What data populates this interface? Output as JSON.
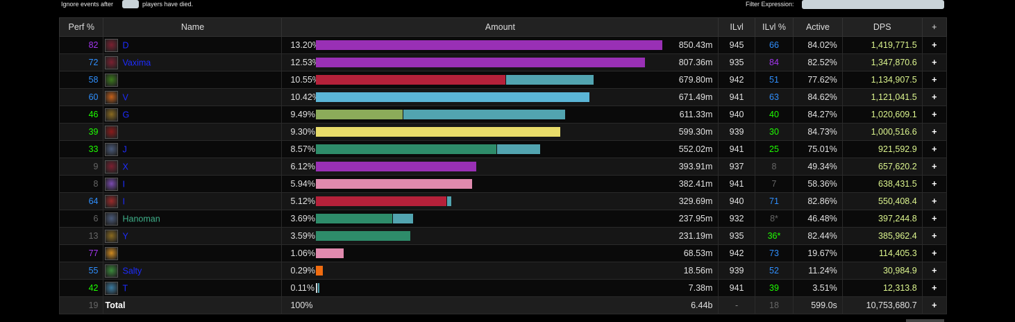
{
  "topbar": {
    "ignore_before": "Ignore events after",
    "ignore_after": "players have died.",
    "filter_label": "Filter Expression:"
  },
  "headers": [
    "Perf %",
    "Name",
    "Amount",
    "ILvl",
    "ILvl %",
    "Active",
    "DPS",
    "+"
  ],
  "colors": {
    "perf_purple": "#a335ee",
    "perf_blue": "#2f8ffe",
    "perf_green": "#1eff00",
    "perf_gray": "#666666",
    "dps_text": "#dcf58e",
    "name_blue": "#1d2cff"
  },
  "rows": [
    {
      "perf": "82",
      "perf_color": "#a335ee",
      "name": "D",
      "name_color": "#1d2cff",
      "icon": "death-knight-icon",
      "icon_color": "#7a2030",
      "pct": "13.20%",
      "bar": [
        {
          "color": "#9930b5",
          "frac": 1.0
        }
      ],
      "amount": "850.43m",
      "ilvl": "945",
      "ilvlpct": "66",
      "ilvlpct_color": "#2f8ffe",
      "active": "84.02%",
      "dps": "1,419,771.5"
    },
    {
      "perf": "72",
      "perf_color": "#2f8ffe",
      "name": "Vaxima",
      "name_color": "#1d2cff",
      "icon": "death-knight-icon",
      "icon_color": "#7a2030",
      "pct": "12.53%",
      "bar": [
        {
          "color": "#9930b5",
          "frac": 0.95
        }
      ],
      "amount": "807.36m",
      "ilvl": "935",
      "ilvlpct": "84",
      "ilvlpct_color": "#a335ee",
      "active": "82.52%",
      "dps": "1,347,870.6"
    },
    {
      "perf": "58",
      "perf_color": "#2f8ffe",
      "name": "",
      "name_color": "#1d2cff",
      "icon": "warlock-icon",
      "icon_color": "#3c7a1c",
      "pct": "10.55%",
      "bar": [
        {
          "color": "#b5213a",
          "frac": 0.547
        },
        {
          "color": "#52a4b0",
          "frac": 0.252
        }
      ],
      "amount": "679.80m",
      "ilvl": "942",
      "ilvlpct": "51",
      "ilvlpct_color": "#2f8ffe",
      "active": "77.62%",
      "dps": "1,134,907.5"
    },
    {
      "perf": "60",
      "perf_color": "#2f8ffe",
      "name": "V",
      "name_color": "#1d2cff",
      "icon": "mage-icon",
      "icon_color": "#c4601a",
      "pct": "10.42%",
      "bar": [
        {
          "color": "#5bb5d6",
          "frac": 0.79
        }
      ],
      "amount": "671.49m",
      "ilvl": "941",
      "ilvlpct": "63",
      "ilvlpct_color": "#2f8ffe",
      "active": "84.62%",
      "dps": "1,121,041.5"
    },
    {
      "perf": "46",
      "perf_color": "#1eff00",
      "name": "G",
      "name_color": "#1d2cff",
      "icon": "hunter-icon",
      "icon_color": "#8a6a20",
      "pct": "9.49%",
      "bar": [
        {
          "color": "#8cab5a",
          "frac": 0.25
        },
        {
          "color": "#52a4b0",
          "frac": 0.466
        }
      ],
      "amount": "611.33m",
      "ilvl": "940",
      "ilvlpct": "40",
      "ilvlpct_color": "#1eff00",
      "active": "84.27%",
      "dps": "1,020,609.1"
    },
    {
      "perf": "39",
      "perf_color": "#1eff00",
      "name": "",
      "name_color": "#1d2cff",
      "icon": "rogue-icon",
      "icon_color": "#8a1a1a",
      "pct": "9.30%",
      "bar": [
        {
          "color": "#e8dc6a",
          "frac": 0.706
        }
      ],
      "amount": "599.30m",
      "ilvl": "939",
      "ilvlpct": "30",
      "ilvlpct_color": "#1eff00",
      "active": "84.73%",
      "dps": "1,000,516.6"
    },
    {
      "perf": "33",
      "perf_color": "#1eff00",
      "name": "J",
      "name_color": "#1d2cff",
      "icon": "shaman-icon",
      "icon_color": "#4a5a7a",
      "pct": "8.57%",
      "bar": [
        {
          "color": "#2e8c6a",
          "frac": 0.522
        },
        {
          "color": "#52a4b0",
          "frac": 0.124
        }
      ],
      "amount": "552.02m",
      "ilvl": "941",
      "ilvlpct": "25",
      "ilvlpct_color": "#1eff00",
      "active": "75.01%",
      "dps": "921,592.9"
    },
    {
      "perf": "9",
      "perf_color": "#666666",
      "name": "X",
      "name_color": "#1d2cff",
      "icon": "death-knight-icon",
      "icon_color": "#7a2030",
      "pct": "6.12%",
      "bar": [
        {
          "color": "#9930b5",
          "frac": 0.463
        }
      ],
      "amount": "393.91m",
      "ilvl": "937",
      "ilvlpct": "8",
      "ilvlpct_color": "#666666",
      "active": "49.34%",
      "dps": "657,620.2"
    },
    {
      "perf": "8",
      "perf_color": "#666666",
      "name": "I",
      "name_color": "#1d2cff",
      "icon": "priest-icon",
      "icon_color": "#7a4ab0",
      "pct": "5.94%",
      "bar": [
        {
          "color": "#e08aae",
          "frac": 0.45
        }
      ],
      "amount": "382.41m",
      "ilvl": "941",
      "ilvlpct": "7",
      "ilvlpct_color": "#666666",
      "active": "58.36%",
      "dps": "638,431.5"
    },
    {
      "perf": "64",
      "perf_color": "#2f8ffe",
      "name": "I",
      "name_color": "#1d2cff",
      "icon": "demon-hunter-icon",
      "icon_color": "#9a2a2a",
      "pct": "5.12%",
      "bar": [
        {
          "color": "#b5213a",
          "frac": 0.376
        },
        {
          "color": "#52a4b0",
          "frac": 0.012
        }
      ],
      "amount": "329.69m",
      "ilvl": "940",
      "ilvlpct": "71",
      "ilvlpct_color": "#2f8ffe",
      "active": "82.86%",
      "dps": "550,408.4"
    },
    {
      "perf": "6",
      "perf_color": "#666666",
      "name": "Hanoman",
      "name_color": "#3fb08a",
      "icon": "shaman-icon",
      "icon_color": "#4a5a7a",
      "pct": "3.69%",
      "bar": [
        {
          "color": "#2e8c6a",
          "frac": 0.22
        },
        {
          "color": "#52a4b0",
          "frac": 0.058
        }
      ],
      "amount": "237.95m",
      "ilvl": "932",
      "ilvlpct": "8*",
      "ilvlpct_color": "#666666",
      "active": "46.48%",
      "dps": "397,244.8"
    },
    {
      "perf": "13",
      "perf_color": "#666666",
      "name": "Y",
      "name_color": "#1d2cff",
      "icon": "hunter-icon",
      "icon_color": "#8a6a20",
      "pct": "3.59%",
      "bar": [
        {
          "color": "#2e8c6a",
          "frac": 0.272
        }
      ],
      "amount": "231.19m",
      "ilvl": "935",
      "ilvlpct": "36*",
      "ilvlpct_color": "#1eff00",
      "active": "82.44%",
      "dps": "385,962.4"
    },
    {
      "perf": "77",
      "perf_color": "#a335ee",
      "name": "",
      "name_color": "#1d2cff",
      "icon": "paladin-icon",
      "icon_color": "#d08a20",
      "pct": "1.06%",
      "bar": [
        {
          "color": "#e08aae",
          "frac": 0.08
        }
      ],
      "amount": "68.53m",
      "ilvl": "942",
      "ilvlpct": "73",
      "ilvlpct_color": "#2f8ffe",
      "active": "19.67%",
      "dps": "114,405.3"
    },
    {
      "perf": "55",
      "perf_color": "#2f8ffe",
      "name": "Salty",
      "name_color": "#1d2cff",
      "icon": "druid-icon",
      "icon_color": "#3a8a3a",
      "pct": "0.29%",
      "bar": [
        {
          "color": "#f06c10",
          "frac": 0.02
        }
      ],
      "amount": "18.56m",
      "ilvl": "939",
      "ilvlpct": "52",
      "ilvlpct_color": "#2f8ffe",
      "active": "11.24%",
      "dps": "30,984.9"
    },
    {
      "perf": "42",
      "perf_color": "#1eff00",
      "name": "T",
      "name_color": "#1d2cff",
      "icon": "monk-icon",
      "icon_color": "#3a7aa0",
      "pct": "0.11%",
      "bar": [
        {
          "color": "#cfd8dc",
          "frac": 0.004
        },
        {
          "color": "#52a4b0",
          "frac": 0.003
        }
      ],
      "amount": "7.38m",
      "ilvl": "941",
      "ilvlpct": "39",
      "ilvlpct_color": "#1eff00",
      "active": "3.51%",
      "dps": "12,313.8"
    }
  ],
  "total": {
    "perf": "19",
    "name": "Total",
    "pct": "100%",
    "amount": "6.44b",
    "ilvl": "-",
    "ilvlpct": "18",
    "active": "599.0s",
    "dps": "10,753,680.7"
  }
}
